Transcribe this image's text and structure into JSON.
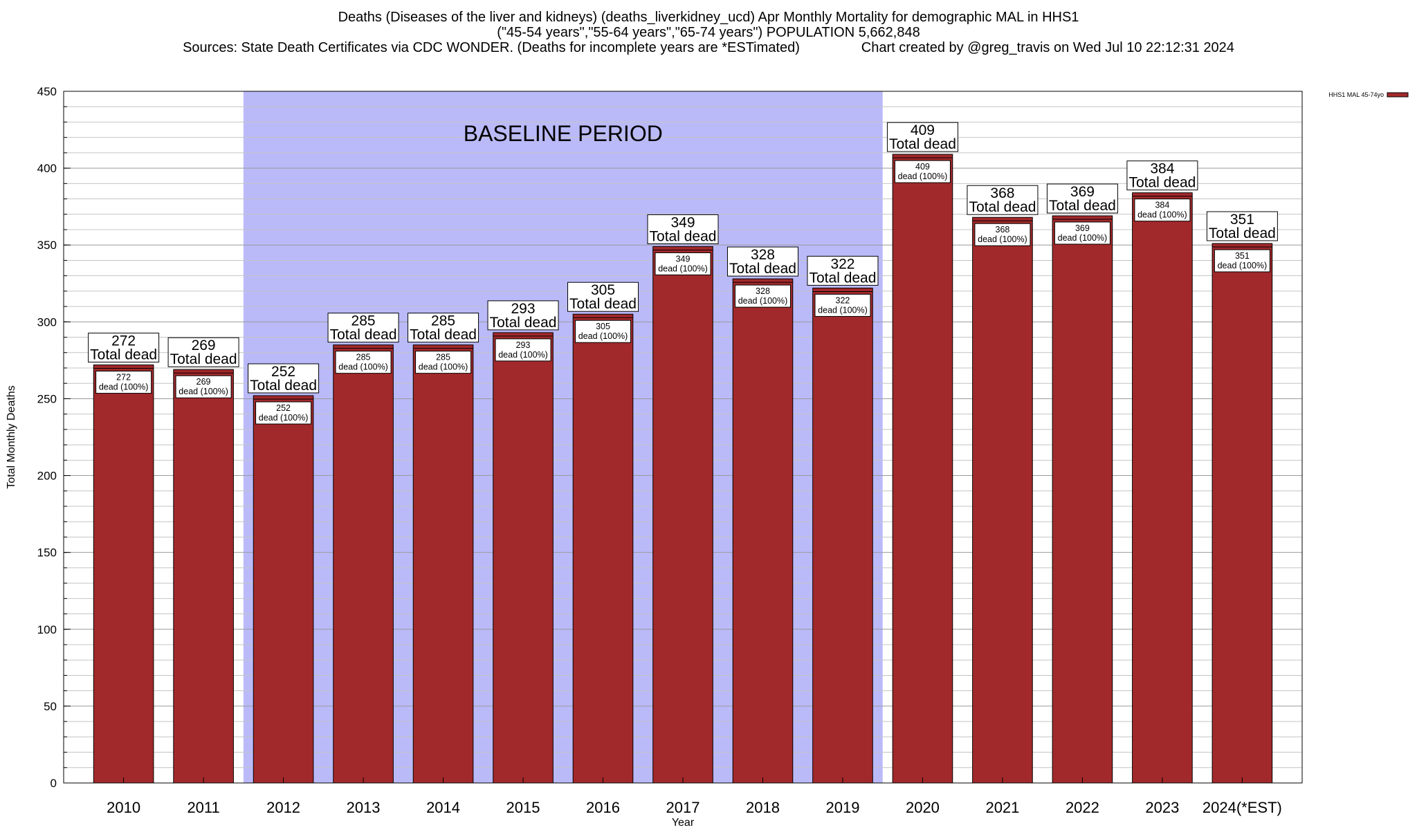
{
  "chart_data": {
    "type": "bar",
    "title_lines": [
      "Deaths (Diseases of the liver and kidneys) (deaths_liverkidney_ucd) Apr Monthly Mortality for demographic MAL in HHS1",
      "(\"45-54 years\",\"55-64 years\",\"65-74 years\") POPULATION 5,662,848",
      "Sources: State Death Certificates via CDC WONDER. (Deaths for incomplete years are *ESTimated)                Chart created by @greg_travis on Wed Jul 10 22:12:31 2024"
    ],
    "xlabel": "Year",
    "ylabel": "Total Monthly Deaths",
    "ylim": [
      0,
      450
    ],
    "ytick_step": 50,
    "minor_grid_step": 10,
    "categories": [
      "2010",
      "2011",
      "2012",
      "2013",
      "2014",
      "2015",
      "2016",
      "2017",
      "2018",
      "2019",
      "2020",
      "2021",
      "2022",
      "2023",
      "2024(*EST)"
    ],
    "series": [
      {
        "name": "HHS1 MAL 45-74yo",
        "color": "#a2292b",
        "values": [
          272,
          269,
          252,
          285,
          285,
          293,
          305,
          349,
          328,
          322,
          409,
          368,
          369,
          384,
          351
        ]
      }
    ],
    "total_label_suffix": "Total dead",
    "inner_label_suffix": "dead (100%)",
    "baseline": {
      "label": "BASELINE PERIOD",
      "from": "2012",
      "to": "2019",
      "color": "#babaf9"
    },
    "legend_position": "top-right",
    "grid": true
  }
}
